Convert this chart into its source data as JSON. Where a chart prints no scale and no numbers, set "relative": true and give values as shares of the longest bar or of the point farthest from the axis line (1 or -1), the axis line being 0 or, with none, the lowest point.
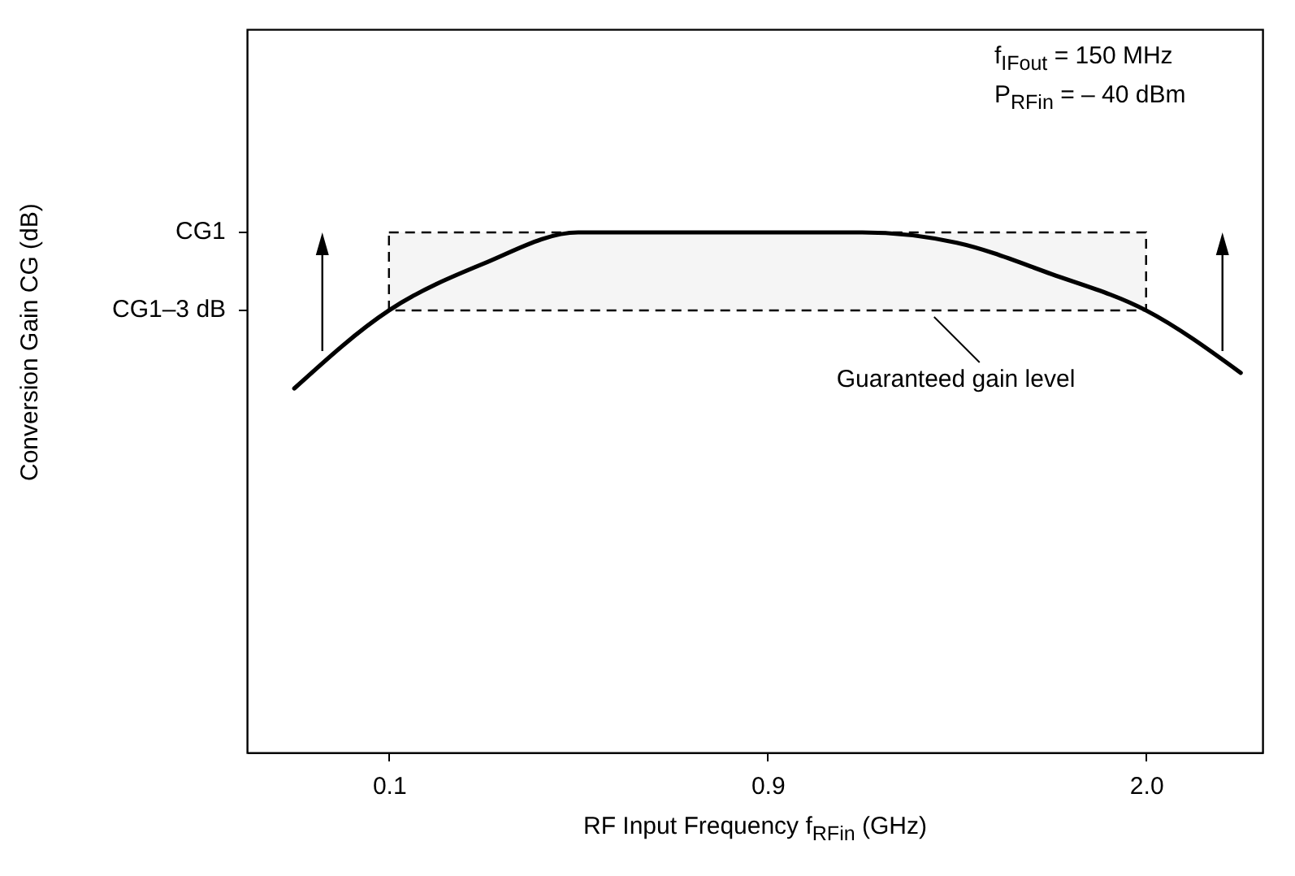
{
  "chart_data": {
    "type": "line",
    "relative": true,
    "xlabel": "RF Input Frequency  f$_{RFin}$  (GHz)",
    "annotations": [
      "f$_{IFout}$ = 150 MHz",
      "P$_{RFin}$ = – 40 dBm",
      "CG1",
      "CG1–3 dB",
      "Conversion Gain  CG  (dB)"
    ],
    "categories": [
      null,
      "0.1",
      null,
      null,
      null,
      "0.9",
      null,
      null,
      null,
      "2.0",
      null
    ],
    "series": [
      {
        "color": "#000000",
        "values": [
          0.7,
          0.85,
          0.94,
          1,
          1,
          1,
          1,
          0.98,
          0.92,
          0.85,
          0.73
        ]
      }
    ],
    "bands": [
      {
        "axis": "y",
        "from": 0.85,
        "to": 1,
        "label": "Guaranteed gain level"
      }
    ],
    "grid": false,
    "marker": "none",
    "line_style": "solid"
  }
}
